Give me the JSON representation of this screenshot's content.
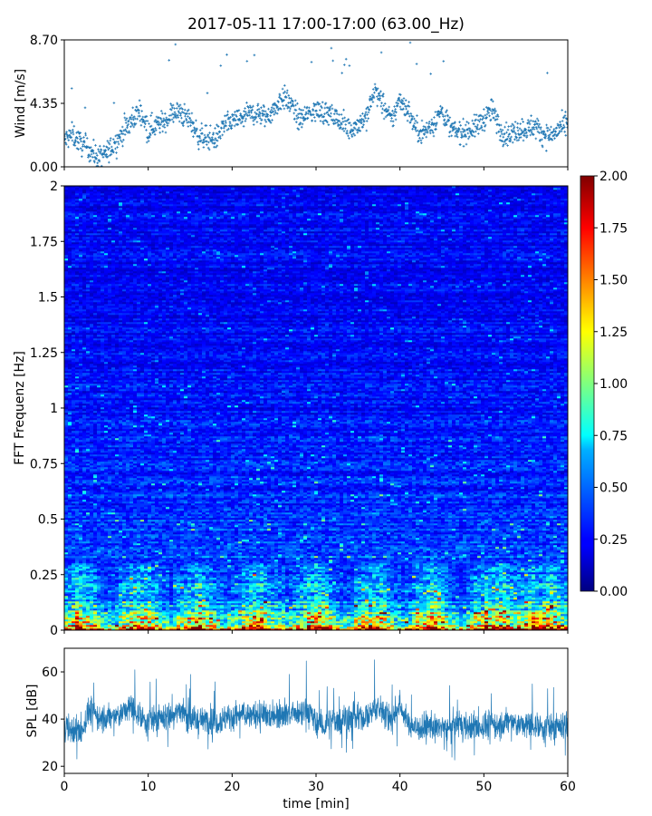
{
  "title": "2017-05-11 17:00-17:00 (63.00_Hz)",
  "chart_data": [
    {
      "type": "scatter",
      "panel": "wind",
      "ylabel": "Wind [m/s]",
      "xlabel": "",
      "xlim": [
        0,
        60
      ],
      "ylim": [
        0,
        8.7
      ],
      "yticks": [
        0.0,
        4.35,
        8.7
      ],
      "ytick_labels": [
        "0.00",
        "4.35",
        "8.70"
      ],
      "marker": "+",
      "color": "#1f77b4",
      "series": [
        {
          "x": [
            0,
            1,
            2,
            3,
            4,
            5,
            6,
            7,
            8,
            9,
            10,
            11,
            12,
            13,
            14,
            15,
            16,
            17,
            18,
            19,
            20,
            21,
            22,
            23,
            24,
            25,
            26,
            27,
            28,
            29,
            30,
            31,
            32,
            33,
            34,
            35,
            36,
            37,
            38,
            39,
            40,
            41,
            42,
            43,
            44,
            45,
            46,
            47,
            48,
            49,
            50,
            51,
            52,
            53,
            54,
            55,
            56,
            57,
            58,
            59,
            60
          ],
          "y": [
            1.8,
            2.2,
            1.6,
            1.2,
            0.6,
            0.9,
            1.6,
            2.4,
            3.1,
            3.9,
            2.6,
            2.9,
            3.1,
            3.8,
            3.6,
            3.2,
            2.1,
            2.0,
            1.9,
            2.8,
            3.1,
            3.3,
            3.6,
            3.7,
            3.4,
            3.9,
            4.8,
            4.3,
            3.2,
            3.6,
            3.9,
            3.7,
            3.5,
            3.0,
            2.6,
            2.9,
            3.4,
            5.3,
            4.2,
            3.1,
            4.7,
            3.8,
            2.5,
            2.4,
            3.0,
            3.9,
            2.6,
            2.3,
            2.5,
            2.7,
            3.3,
            3.9,
            2.4,
            2.2,
            2.5,
            2.6,
            2.8,
            2.3,
            2.1,
            2.6,
            2.9
          ]
        }
      ]
    },
    {
      "type": "heatmap",
      "panel": "spectrogram",
      "ylabel": "FFT Frequenz [Hz]",
      "xlabel": "",
      "xlim": [
        0,
        60
      ],
      "ylim": [
        0,
        2
      ],
      "yticks": [
        0,
        0.25,
        0.5,
        0.75,
        1,
        1.25,
        1.5,
        1.75,
        2
      ],
      "ytick_labels": [
        "0",
        "0.25",
        "0.5",
        "0.75",
        "1",
        "1.25",
        "1.5",
        "1.75",
        "2"
      ],
      "colormap": "jet",
      "colorbar": {
        "range": [
          0,
          2
        ],
        "ticks": [
          0.0,
          0.25,
          0.5,
          0.75,
          1.0,
          1.25,
          1.5,
          1.75,
          2.0
        ],
        "tick_labels": [
          "0.00",
          "0.25",
          "0.50",
          "0.75",
          "1.00",
          "1.25",
          "1.50",
          "1.75",
          "2.00"
        ]
      },
      "freq_profile": {
        "freq": [
          0,
          0.02,
          0.05,
          0.1,
          0.15,
          0.25,
          0.4,
          0.75,
          1.25,
          2.0
        ],
        "mean_value": [
          1.9,
          1.35,
          1.0,
          0.75,
          0.6,
          0.45,
          0.35,
          0.3,
          0.25,
          0.24
        ]
      }
    },
    {
      "type": "line",
      "panel": "spl",
      "ylabel": "SPL [dB]",
      "xlabel": "time [min]",
      "xlim": [
        0,
        60
      ],
      "ylim": [
        17,
        70
      ],
      "yticks": [
        20,
        40,
        60
      ],
      "xticks": [
        0,
        10,
        20,
        30,
        40,
        50,
        60
      ],
      "color": "#1f77b4",
      "series": [
        {
          "x": [
            0,
            1,
            2,
            3,
            4,
            5,
            6,
            7,
            8,
            9,
            10,
            11,
            12,
            13,
            14,
            15,
            16,
            17,
            18,
            19,
            20,
            21,
            22,
            23,
            24,
            25,
            26,
            27,
            28,
            29,
            30,
            31,
            32,
            33,
            34,
            35,
            36,
            37,
            38,
            39,
            40,
            41,
            42,
            43,
            44,
            45,
            46,
            47,
            48,
            49,
            50,
            51,
            52,
            53,
            54,
            55,
            56,
            57,
            58,
            59,
            60
          ],
          "y": [
            38,
            35,
            34,
            44,
            41,
            40,
            41,
            43,
            45,
            42,
            39,
            40,
            41,
            42,
            44,
            40,
            39,
            40,
            39,
            40,
            41,
            42,
            41,
            42,
            41,
            42,
            43,
            42,
            41,
            44,
            38,
            37,
            39,
            40,
            41,
            40,
            41,
            45,
            43,
            40,
            46,
            38,
            36,
            37,
            36,
            37,
            36,
            38,
            37,
            36,
            37,
            38,
            37,
            39,
            38,
            37,
            38,
            37,
            36,
            37,
            38
          ]
        }
      ]
    }
  ]
}
